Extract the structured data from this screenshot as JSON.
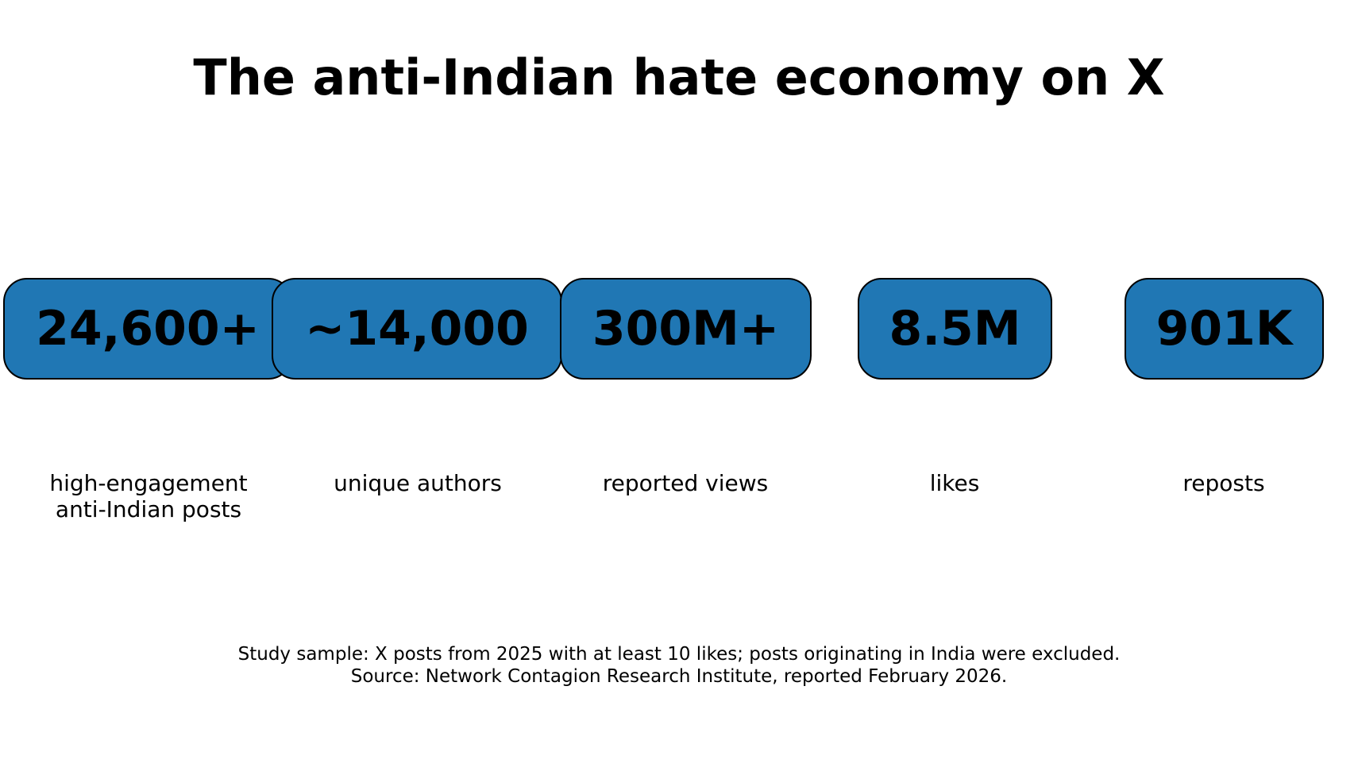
{
  "title": "The anti-Indian hate economy on X",
  "stats": [
    {
      "value": "24,600+",
      "label": "high-engagement\nanti-Indian posts"
    },
    {
      "value": "~14,000",
      "label": "unique authors"
    },
    {
      "value": "300M+",
      "label": "reported views"
    },
    {
      "value": "8.5M",
      "label": "likes"
    },
    {
      "value": "901K",
      "label": "reposts"
    }
  ],
  "footnote": {
    "line1": "Study sample: X posts from 2025 with at least 10 likes; posts originating in India were excluded.",
    "line2": "Source: Network Contagion Research Institute, reported February 2026."
  },
  "colors": {
    "box_fill": "#2077b4",
    "box_border": "#000000",
    "text": "#000000",
    "background": "#ffffff"
  }
}
